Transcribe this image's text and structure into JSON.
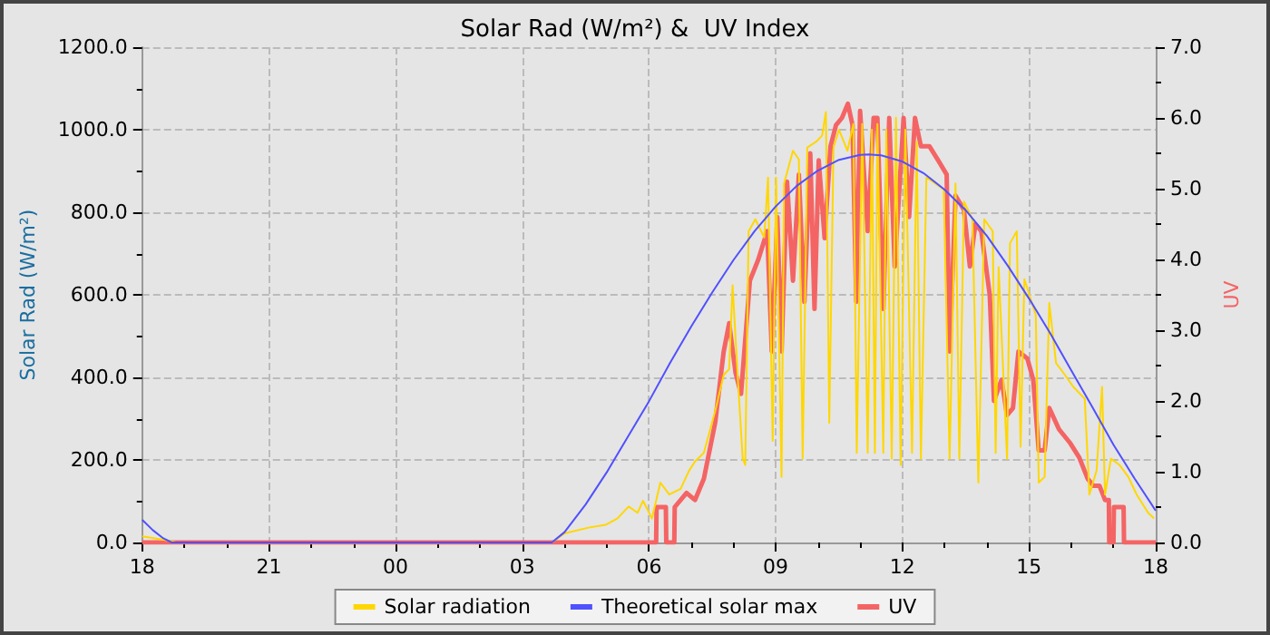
{
  "chart_data": {
    "type": "line",
    "title": "Solar Rad (W/m²) &  UV Index",
    "ylabel": "Solar Rad (W/m²)",
    "y2label": "UV",
    "xlim": [
      18,
      42
    ],
    "xticks": [
      {
        "value": 18,
        "label": "18"
      },
      {
        "value": 19,
        "label": null
      },
      {
        "value": 20,
        "label": null
      },
      {
        "value": 21,
        "label": "21"
      },
      {
        "value": 22,
        "label": null
      },
      {
        "value": 23,
        "label": null
      },
      {
        "value": 24,
        "label": "00"
      },
      {
        "value": 25,
        "label": null
      },
      {
        "value": 26,
        "label": null
      },
      {
        "value": 27,
        "label": "03"
      },
      {
        "value": 28,
        "label": null
      },
      {
        "value": 29,
        "label": null
      },
      {
        "value": 30,
        "label": "06"
      },
      {
        "value": 31,
        "label": null
      },
      {
        "value": 32,
        "label": null
      },
      {
        "value": 33,
        "label": "09"
      },
      {
        "value": 34,
        "label": null
      },
      {
        "value": 35,
        "label": null
      },
      {
        "value": 36,
        "label": "12"
      },
      {
        "value": 37,
        "label": null
      },
      {
        "value": 38,
        "label": null
      },
      {
        "value": 39,
        "label": "15"
      },
      {
        "value": 40,
        "label": null
      },
      {
        "value": 41,
        "label": null
      },
      {
        "value": 42,
        "label": "18"
      }
    ],
    "ylim": [
      0,
      1200
    ],
    "yticks": [
      {
        "value": 0,
        "label": "0.0"
      },
      {
        "value": 100,
        "label": null
      },
      {
        "value": 200,
        "label": "200.0"
      },
      {
        "value": 300,
        "label": null
      },
      {
        "value": 400,
        "label": "400.0"
      },
      {
        "value": 500,
        "label": null
      },
      {
        "value": 600,
        "label": "600.0"
      },
      {
        "value": 700,
        "label": null
      },
      {
        "value": 800,
        "label": "800.0"
      },
      {
        "value": 900,
        "label": null
      },
      {
        "value": 1000,
        "label": "1000.0"
      },
      {
        "value": 1100,
        "label": null
      },
      {
        "value": 1200,
        "label": "1200.0"
      }
    ],
    "y2lim": [
      0,
      7
    ],
    "y2ticks": [
      {
        "value": 0,
        "label": "0.0"
      },
      {
        "value": 0.5,
        "label": null
      },
      {
        "value": 1,
        "label": "1.0"
      },
      {
        "value": 1.5,
        "label": null
      },
      {
        "value": 2,
        "label": "2.0"
      },
      {
        "value": 2.5,
        "label": null
      },
      {
        "value": 3,
        "label": "3.0"
      },
      {
        "value": 3.5,
        "label": null
      },
      {
        "value": 4,
        "label": "4.0"
      },
      {
        "value": 4.5,
        "label": null
      },
      {
        "value": 5,
        "label": "5.0"
      },
      {
        "value": 5.5,
        "label": null
      },
      {
        "value": 6,
        "label": "6.0"
      },
      {
        "value": 6.5,
        "label": null
      },
      {
        "value": 7,
        "label": "7.0"
      }
    ],
    "grid": true,
    "legend": "bottom",
    "marker": "none",
    "line_style": "solid",
    "series": [
      {
        "name": "Solar radiation",
        "color": "#ffd700",
        "x": [
          18,
          18.3,
          18.6,
          18.8,
          27.7,
          28.0,
          28.57,
          28.98,
          29.25,
          29.52,
          29.73,
          29.86,
          30.07,
          30.27,
          30.48,
          30.75,
          30.95,
          31.09,
          31.3,
          31.57,
          31.77,
          31.9,
          31.98,
          32.1,
          32.22,
          32.28,
          32.36,
          32.52,
          32.73,
          32.82,
          32.93,
          33.01,
          33.14,
          33.2,
          33.41,
          33.55,
          33.64,
          33.75,
          33.96,
          34.1,
          34.19,
          34.27,
          34.37,
          34.5,
          34.7,
          34.84,
          34.92,
          35.05,
          35.18,
          35.28,
          35.35,
          35.41,
          35.55,
          35.62,
          35.75,
          35.85,
          35.96,
          36.07,
          36.23,
          36.34,
          36.44,
          36.57,
          36.78,
          36.98,
          37.12,
          37.26,
          37.35,
          37.46,
          37.66,
          37.8,
          37.94,
          38.14,
          38.21,
          38.28,
          38.48,
          38.55,
          38.71,
          38.8,
          38.89,
          39.16,
          39.23,
          39.37,
          39.48,
          39.64,
          39.85,
          40.05,
          40.32,
          40.43,
          40.6,
          40.73,
          40.8,
          40.94,
          41.14,
          41.35,
          41.55,
          41.82,
          41.96
        ],
        "values": [
          15,
          10,
          5,
          0,
          0,
          22,
          36,
          43,
          58,
          87,
          72,
          101,
          58,
          145,
          116,
          130,
          174,
          196,
          217,
          319,
          406,
          420,
          623,
          406,
          203,
          188,
          754,
          783,
          739,
          884,
          246,
          884,
          159,
          870,
          949,
          928,
          203,
          957,
          971,
          986,
          1043,
          290,
          957,
          1000,
          949,
          1014,
          217,
          1014,
          217,
          1000,
          217,
          1014,
          217,
          1000,
          203,
          1029,
          188,
          1000,
          217,
          971,
          203,
          884,
          870,
          855,
          203,
          870,
          203,
          826,
          783,
          145,
          783,
          754,
          217,
          667,
          203,
          725,
          754,
          232,
          638,
          551,
          145,
          159,
          580,
          435,
          406,
          377,
          348,
          116,
          174,
          377,
          116,
          203,
          188,
          159,
          116,
          72,
          58
        ]
      },
      {
        "name": "Theoretical solar max",
        "color": "#5050ff",
        "x": [
          18,
          18.25,
          18.5,
          18.7,
          27.7,
          28,
          28.5,
          29,
          29.5,
          30,
          30.5,
          31,
          31.5,
          32,
          32.5,
          33,
          33.5,
          34,
          34.5,
          35,
          35.2,
          35.5,
          36,
          36.5,
          37,
          37.5,
          38,
          38.5,
          39,
          39.5,
          40,
          40.5,
          41,
          41.5,
          42
        ],
        "values": [
          55,
          30,
          10,
          0,
          0,
          25,
          92,
          170,
          256,
          342,
          435,
          523,
          606,
          684,
          754,
          814,
          864,
          901,
          927,
          939,
          940,
          938,
          923,
          895,
          855,
          805,
          743,
          670,
          591,
          507,
          417,
          328,
          237,
          155,
          77
        ]
      },
      {
        "name": "UV",
        "color": "#f46464",
        "axis": "y2",
        "x": [
          18,
          30.17,
          30.18,
          30.4,
          30.41,
          30.6,
          30.61,
          30.89,
          31.09,
          31.3,
          31.57,
          31.77,
          31.9,
          32.05,
          32.18,
          32.39,
          32.59,
          32.8,
          32.91,
          33.04,
          33.14,
          33.27,
          33.41,
          33.55,
          33.68,
          33.82,
          33.92,
          34.02,
          34.16,
          34.3,
          34.43,
          34.57,
          34.71,
          34.82,
          34.91,
          35.0,
          35.18,
          35.32,
          35.41,
          35.55,
          35.69,
          35.82,
          36.03,
          36.16,
          36.3,
          36.44,
          36.64,
          36.85,
          37.05,
          37.12,
          37.26,
          37.46,
          37.6,
          37.73,
          37.87,
          38.07,
          38.17,
          38.35,
          38.48,
          38.62,
          38.75,
          38.96,
          39.1,
          39.23,
          39.37,
          39.48,
          39.71,
          39.98,
          40.19,
          40.39,
          40.53,
          40.67,
          40.8,
          40.89,
          40.9,
          41.0,
          41.01,
          41.24,
          41.25,
          42
        ],
        "values": [
          0,
          0,
          0.5,
          0.5,
          0,
          0,
          0.5,
          0.7,
          0.6,
          0.9,
          1.7,
          2.7,
          3.1,
          2.4,
          2.1,
          3.7,
          4.0,
          4.4,
          2.7,
          4.6,
          2.7,
          5.1,
          3.7,
          5.2,
          3.4,
          5.5,
          3.3,
          5.4,
          4.3,
          5.6,
          5.9,
          6.0,
          6.2,
          5.9,
          3.4,
          6.1,
          4.4,
          6.0,
          6.0,
          3.3,
          6.0,
          3.9,
          6.0,
          4.6,
          6.0,
          5.6,
          5.6,
          5.4,
          5.2,
          2.7,
          4.9,
          4.7,
          3.9,
          4.5,
          4.4,
          3.5,
          2.0,
          2.3,
          1.8,
          1.9,
          2.7,
          2.6,
          2.3,
          1.3,
          1.3,
          1.9,
          1.6,
          1.4,
          1.2,
          0.9,
          0.8,
          0.8,
          0.6,
          0.6,
          0,
          0,
          0.5,
          0.5,
          0,
          0
        ]
      }
    ]
  }
}
